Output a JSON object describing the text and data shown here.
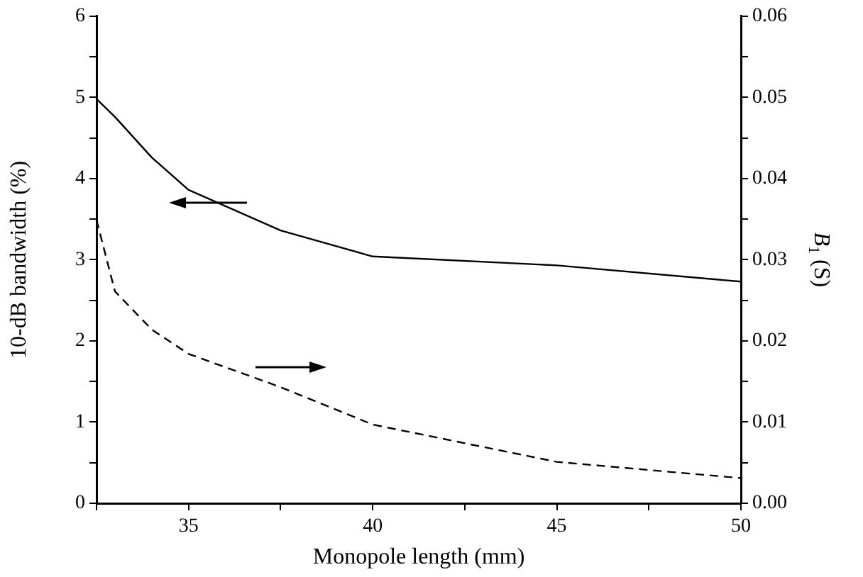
{
  "chart_data": {
    "type": "line",
    "xlabel": "Monopole length (mm)",
    "ylabel": "10-dB bandwidth (%)",
    "y2label": "B$_{1}$ (S)",
    "xlim": [
      32.5,
      50
    ],
    "xticks": [
      {
        "value": 32.5,
        "label": null
      },
      35,
      {
        "value": 37.5,
        "label": null
      },
      40,
      {
        "value": 42.5,
        "label": null
      },
      45,
      {
        "value": 47.5,
        "label": null
      },
      50
    ],
    "ylim": [
      0,
      6
    ],
    "yticks": [
      0,
      {
        "value": 0.5,
        "label": null
      },
      1,
      {
        "value": 1.5,
        "label": null
      },
      2,
      {
        "value": 2.5,
        "label": null
      },
      3,
      {
        "value": 3.5,
        "label": null
      },
      4,
      {
        "value": 4.5,
        "label": null
      },
      5,
      {
        "value": 5.5,
        "label": null
      },
      6
    ],
    "y2lim": [
      0,
      0.06
    ],
    "y2ticks": [
      {
        "value": 0,
        "label": "0.00"
      },
      {
        "value": 0.005,
        "label": null
      },
      {
        "value": 0.01,
        "label": "0.01"
      },
      {
        "value": 0.015,
        "label": null
      },
      {
        "value": 0.02,
        "label": "0.02"
      },
      {
        "value": 0.025,
        "label": null
      },
      {
        "value": 0.03,
        "label": "0.03"
      },
      {
        "value": 0.035,
        "label": null
      },
      {
        "value": 0.04,
        "label": "0.04"
      },
      {
        "value": 0.045,
        "label": null
      },
      {
        "value": 0.05,
        "label": "0.05"
      },
      {
        "value": 0.055,
        "label": null
      },
      {
        "value": 0.06,
        "label": "0.06"
      }
    ],
    "grid": false,
    "legend": false,
    "marker": "none",
    "series": [
      {
        "color": "#000000",
        "line_style": "solid",
        "x": [
          32.5,
          33,
          34,
          35,
          37.5,
          40,
          45,
          50
        ],
        "values": [
          4.98,
          4.76,
          4.26,
          3.86,
          3.36,
          3.04,
          2.93,
          2.73
        ]
      },
      {
        "color": "#000000",
        "line_style": "dashed",
        "axis": "y2",
        "x": [
          32.5,
          33,
          34,
          35,
          37.5,
          40,
          45,
          50
        ],
        "values": [
          0.0349,
          0.0261,
          0.0214,
          0.0184,
          0.0143,
          0.0097,
          0.0051,
          0.0031
        ]
      }
    ]
  }
}
